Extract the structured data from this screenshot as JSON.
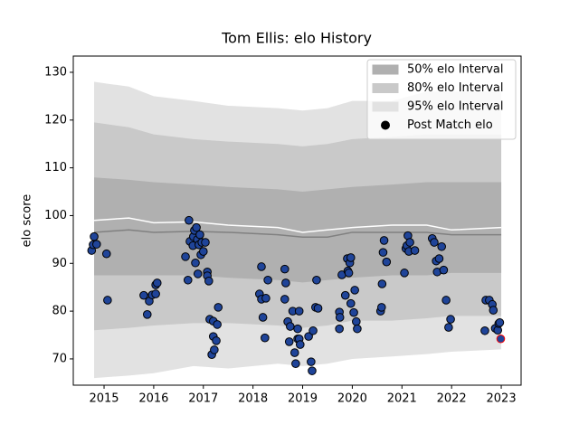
{
  "chart_data": {
    "type": "scatter",
    "title": "Tom Ellis: elo History",
    "ylabel": "elo score",
    "xlim": [
      2014.38,
      2023.4
    ],
    "ylim": [
      64.5,
      133.4
    ],
    "xticks": [
      2015,
      2016,
      2017,
      2018,
      2019,
      2020,
      2021,
      2022,
      2023
    ],
    "yticks": [
      70,
      80,
      90,
      100,
      110,
      120,
      130
    ],
    "legend": "upper right",
    "band_x": [
      2014.8,
      2015.5,
      2016.0,
      2016.8,
      2017.5,
      2018.5,
      2019.0,
      2019.5,
      2020.0,
      2020.8,
      2021.5,
      2022.0,
      2023.0
    ],
    "bands": [
      {
        "name": "50% elo Interval",
        "color": "#b0b0b0",
        "upper": [
          108,
          107.5,
          107,
          106.5,
          106,
          105.5,
          105,
          105.5,
          106,
          106.5,
          107,
          107,
          107
        ],
        "lower": [
          87.5,
          87.5,
          87.5,
          87.5,
          87,
          86.5,
          86,
          86.5,
          87,
          87.5,
          87.5,
          88,
          88
        ]
      },
      {
        "name": "80% elo Interval",
        "color": "#c9c9c9",
        "upper": [
          119.5,
          118.5,
          117,
          116,
          115.5,
          115,
          114.5,
          115,
          116,
          116.5,
          117,
          117,
          117
        ],
        "lower": [
          76,
          76.5,
          77,
          77.5,
          77.5,
          77,
          76.5,
          77,
          78,
          78,
          78.5,
          79,
          79
        ]
      },
      {
        "name": "95% elo Interval",
        "color": "#e2e2e2",
        "upper": [
          128,
          127,
          125,
          124,
          123,
          122.5,
          122,
          122.5,
          124,
          124,
          126,
          126,
          126
        ],
        "lower": [
          66,
          66.5,
          67,
          68.5,
          68,
          69,
          68.5,
          69,
          70,
          70.5,
          71,
          71.5,
          72
        ]
      }
    ],
    "lines": [
      {
        "color": "#ffffff",
        "values": [
          99,
          99.5,
          98.5,
          98.7,
          98,
          97.5,
          96.5,
          97,
          97.5,
          98,
          98,
          97,
          97.5
        ]
      },
      {
        "color": "#808080",
        "values": [
          96.5,
          97,
          96.5,
          96.7,
          96.5,
          96,
          95.5,
          95.5,
          96.5,
          96.5,
          96.5,
          96,
          96
        ]
      }
    ],
    "series": [
      {
        "name": "Post Match elo",
        "color": "#1f4499",
        "edgecolor": "#000000",
        "last_edgecolor": "#ff0000",
        "x": [
          2014.75,
          2014.78,
          2014.8,
          2014.85,
          2015.05,
          2015.07,
          2015.8,
          2015.87,
          2015.91,
          2015.97,
          2016.04,
          2016.07,
          2016.04,
          2016.64,
          2016.69,
          2016.71,
          2016.73,
          2016.79,
          2016.8,
          2016.82,
          2016.84,
          2016.86,
          2016.88,
          2016.89,
          2016.91,
          2016.93,
          2016.95,
          2016.97,
          2017.0,
          2017.04,
          2017.08,
          2017.08,
          2017.11,
          2017.13,
          2017.17,
          2017.2,
          2017.2,
          2017.22,
          2017.26,
          2017.28,
          2017.3,
          2018.17,
          2018.13,
          2018.17,
          2018.2,
          2018.24,
          2018.26,
          2018.3,
          2018.64,
          2018.64,
          2018.66,
          2018.7,
          2018.73,
          2018.75,
          2018.8,
          2018.84,
          2018.86,
          2018.9,
          2018.9,
          2018.93,
          2018.93,
          2018.95,
          2019.12,
          2019.17,
          2019.19,
          2019.21,
          2019.26,
          2019.28,
          2019.31,
          2019.74,
          2019.75,
          2019.74,
          2019.79,
          2019.86,
          2019.9,
          2019.91,
          2019.93,
          2019.95,
          2019.97,
          2019.97,
          2020.03,
          2020.05,
          2020.08,
          2020.1,
          2020.57,
          2020.59,
          2020.6,
          2020.62,
          2020.64,
          2020.69,
          2021.05,
          2021.08,
          2021.1,
          2021.12,
          2021.14,
          2021.16,
          2021.26,
          2021.61,
          2021.65,
          2021.69,
          2021.71,
          2021.75,
          2021.8,
          2021.84,
          2021.89,
          2021.94,
          2021.98,
          2022.67,
          2022.69,
          2022.76,
          2022.82,
          2022.84,
          2022.88,
          2022.93,
          2022.95,
          2022.97,
          2022.99
        ],
        "values": [
          92.7,
          93.9,
          95.6,
          94,
          92,
          82.3,
          83.3,
          79.3,
          82.1,
          83.4,
          85.5,
          85.9,
          83.6,
          91.4,
          86.5,
          99,
          94.6,
          93.7,
          95.6,
          96.9,
          90.1,
          97.5,
          95,
          87.8,
          93.9,
          96,
          91.8,
          94.4,
          92.5,
          94.4,
          88.2,
          87.4,
          86.3,
          78.3,
          70.9,
          74.7,
          77.9,
          71.9,
          73.8,
          77.2,
          80.8,
          89.3,
          83.6,
          82.5,
          78.7,
          74.4,
          82.7,
          86.5,
          88.8,
          82.5,
          85.9,
          77.8,
          73.6,
          76.8,
          80,
          71.3,
          69,
          76.3,
          74.2,
          74.2,
          80,
          73,
          74.7,
          69.4,
          67.5,
          75.9,
          80.8,
          86.5,
          80.6,
          79.8,
          78.7,
          76.3,
          87.6,
          83.3,
          91,
          88.4,
          88,
          90.1,
          91.2,
          81.6,
          79.7,
          84.4,
          77.8,
          76.3,
          80,
          80.8,
          85.7,
          92.3,
          94.8,
          90.3,
          88,
          93.1,
          93.7,
          95.8,
          92.5,
          94.4,
          92.7,
          95.2,
          94.4,
          90.5,
          88.2,
          91,
          93.5,
          88.6,
          82.3,
          76.6,
          78.3,
          75.9,
          82.3,
          82.3,
          81.4,
          80.2,
          76.4,
          76,
          77.4,
          77.6,
          74.2
        ]
      }
    ]
  }
}
